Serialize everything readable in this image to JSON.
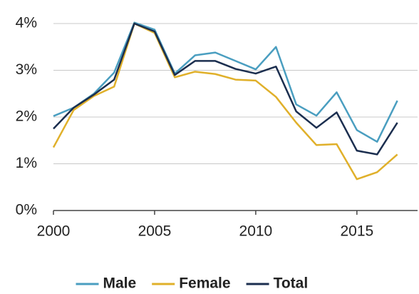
{
  "chart_data": {
    "type": "line",
    "x": [
      2000,
      2001,
      2002,
      2003,
      2004,
      2005,
      2006,
      2007,
      2008,
      2009,
      2010,
      2011,
      2012,
      2013,
      2014,
      2015,
      2016,
      2017
    ],
    "series": [
      {
        "name": "Male",
        "color": "#4a9ec0",
        "values": [
          2.02,
          2.2,
          2.5,
          2.95,
          4.02,
          3.87,
          2.93,
          3.32,
          3.38,
          3.2,
          3.02,
          3.5,
          2.27,
          2.03,
          2.53,
          1.72,
          1.47,
          2.35
        ]
      },
      {
        "name": "Female",
        "color": "#e0b02a",
        "values": [
          1.35,
          2.15,
          2.45,
          2.65,
          4.0,
          3.8,
          2.85,
          2.97,
          2.92,
          2.8,
          2.78,
          2.43,
          1.88,
          1.4,
          1.42,
          0.67,
          0.82,
          1.2
        ]
      },
      {
        "name": "Total",
        "color": "#1b2e4f",
        "values": [
          1.75,
          2.2,
          2.48,
          2.8,
          4.0,
          3.83,
          2.9,
          3.2,
          3.2,
          3.03,
          2.93,
          3.08,
          2.12,
          1.77,
          2.1,
          1.28,
          1.2,
          1.88
        ]
      }
    ],
    "xlim": [
      2000,
      2018
    ],
    "xticks": [
      2000,
      2005,
      2010,
      2015
    ],
    "ylim": [
      0,
      4
    ],
    "yticks": [
      {
        "value": 0,
        "label": "0%"
      },
      {
        "value": 1,
        "label": "1%"
      },
      {
        "value": 2,
        "label": "2%"
      },
      {
        "value": 3,
        "label": "3%"
      },
      {
        "value": 4,
        "label": "4%"
      }
    ],
    "grid": true,
    "legend": "bottom"
  }
}
